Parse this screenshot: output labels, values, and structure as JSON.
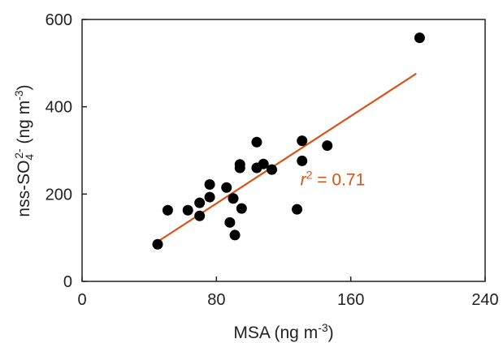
{
  "chart_data": {
    "type": "scatter",
    "xlabel": {
      "main": "MSA (ng m",
      "sup": "-3",
      "end": ")"
    },
    "ylabel": {
      "pre": "nss-SO",
      "sub": "4",
      "sup": "2-",
      "post": " (ng m",
      "sup2": "-3",
      "end": ")"
    },
    "xlim": [
      0,
      240
    ],
    "ylim": [
      0,
      600
    ],
    "xticks": [
      0,
      80,
      160,
      240
    ],
    "yticks": [
      0,
      200,
      400,
      600
    ],
    "grid": false,
    "points": [
      [
        45,
        85
      ],
      [
        51,
        163
      ],
      [
        63,
        163
      ],
      [
        70,
        180
      ],
      [
        70,
        150
      ],
      [
        76,
        222
      ],
      [
        76,
        193
      ],
      [
        86,
        215
      ],
      [
        88,
        135
      ],
      [
        90,
        190
      ],
      [
        91,
        106
      ],
      [
        94,
        268
      ],
      [
        94,
        260
      ],
      [
        95,
        167
      ],
      [
        104,
        319
      ],
      [
        104,
        260
      ],
      [
        108,
        269
      ],
      [
        113,
        256
      ],
      [
        128,
        165
      ],
      [
        131,
        322
      ],
      [
        131,
        276
      ],
      [
        146,
        311
      ],
      [
        201,
        558
      ]
    ],
    "fit_line": {
      "x": [
        45,
        199
      ],
      "y": [
        91,
        476
      ]
    },
    "annotation": {
      "var": "r",
      "sup": "2",
      "rest": " = 0.71",
      "x": 130,
      "y": 220
    },
    "colors": {
      "points": "#000000",
      "fit": "#d95319",
      "axis": "#222222"
    }
  }
}
